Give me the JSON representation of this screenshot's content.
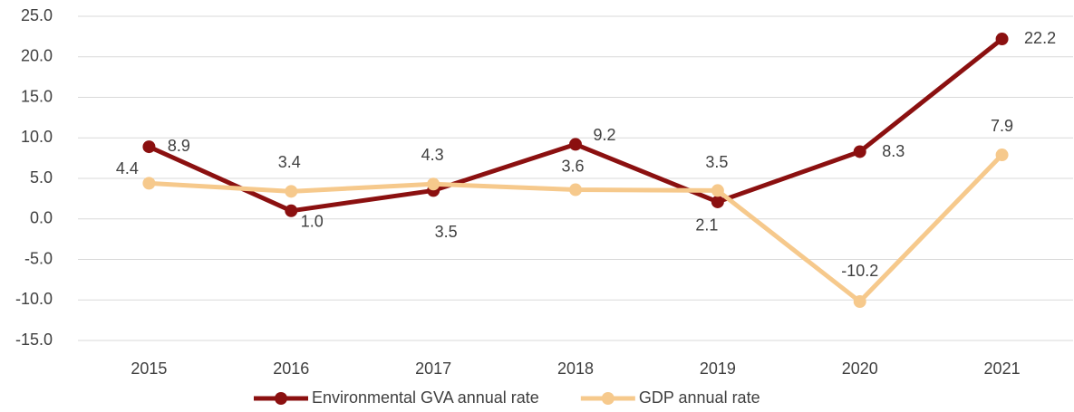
{
  "chart_data": {
    "type": "line",
    "categories": [
      "2015",
      "2016",
      "2017",
      "2018",
      "2019",
      "2020",
      "2021"
    ],
    "series": [
      {
        "name": "Environmental GVA annual rate",
        "color": "#8b1010",
        "values": [
          8.9,
          1.0,
          3.5,
          9.2,
          2.1,
          8.3,
          22.2
        ],
        "value_labels": [
          "8.9",
          "1.0",
          "3.5",
          "9.2",
          "2.1",
          "8.3",
          "22.2"
        ]
      },
      {
        "name": "GDP annual rate",
        "color": "#f6c98c",
        "values": [
          4.4,
          3.4,
          4.3,
          3.6,
          3.5,
          -10.2,
          7.9
        ],
        "value_labels": [
          "4.4",
          "3.4",
          "4.3",
          "3.6",
          "3.5",
          "-10.2",
          "7.9"
        ]
      }
    ],
    "ylim": [
      -15,
      25
    ],
    "yticks": [
      {
        "value": -15,
        "label": "-15.0"
      },
      {
        "value": -10,
        "label": "-10.0"
      },
      {
        "value": -5,
        "label": "-5.0"
      },
      {
        "value": 0,
        "label": "0.0"
      },
      {
        "value": 5,
        "label": "5.0"
      },
      {
        "value": 10,
        "label": "10.0"
      },
      {
        "value": 15,
        "label": "15.0"
      },
      {
        "value": 20,
        "label": "20.0"
      },
      {
        "value": 25,
        "label": "25.0"
      }
    ],
    "grid": true,
    "legend": "bottom"
  }
}
